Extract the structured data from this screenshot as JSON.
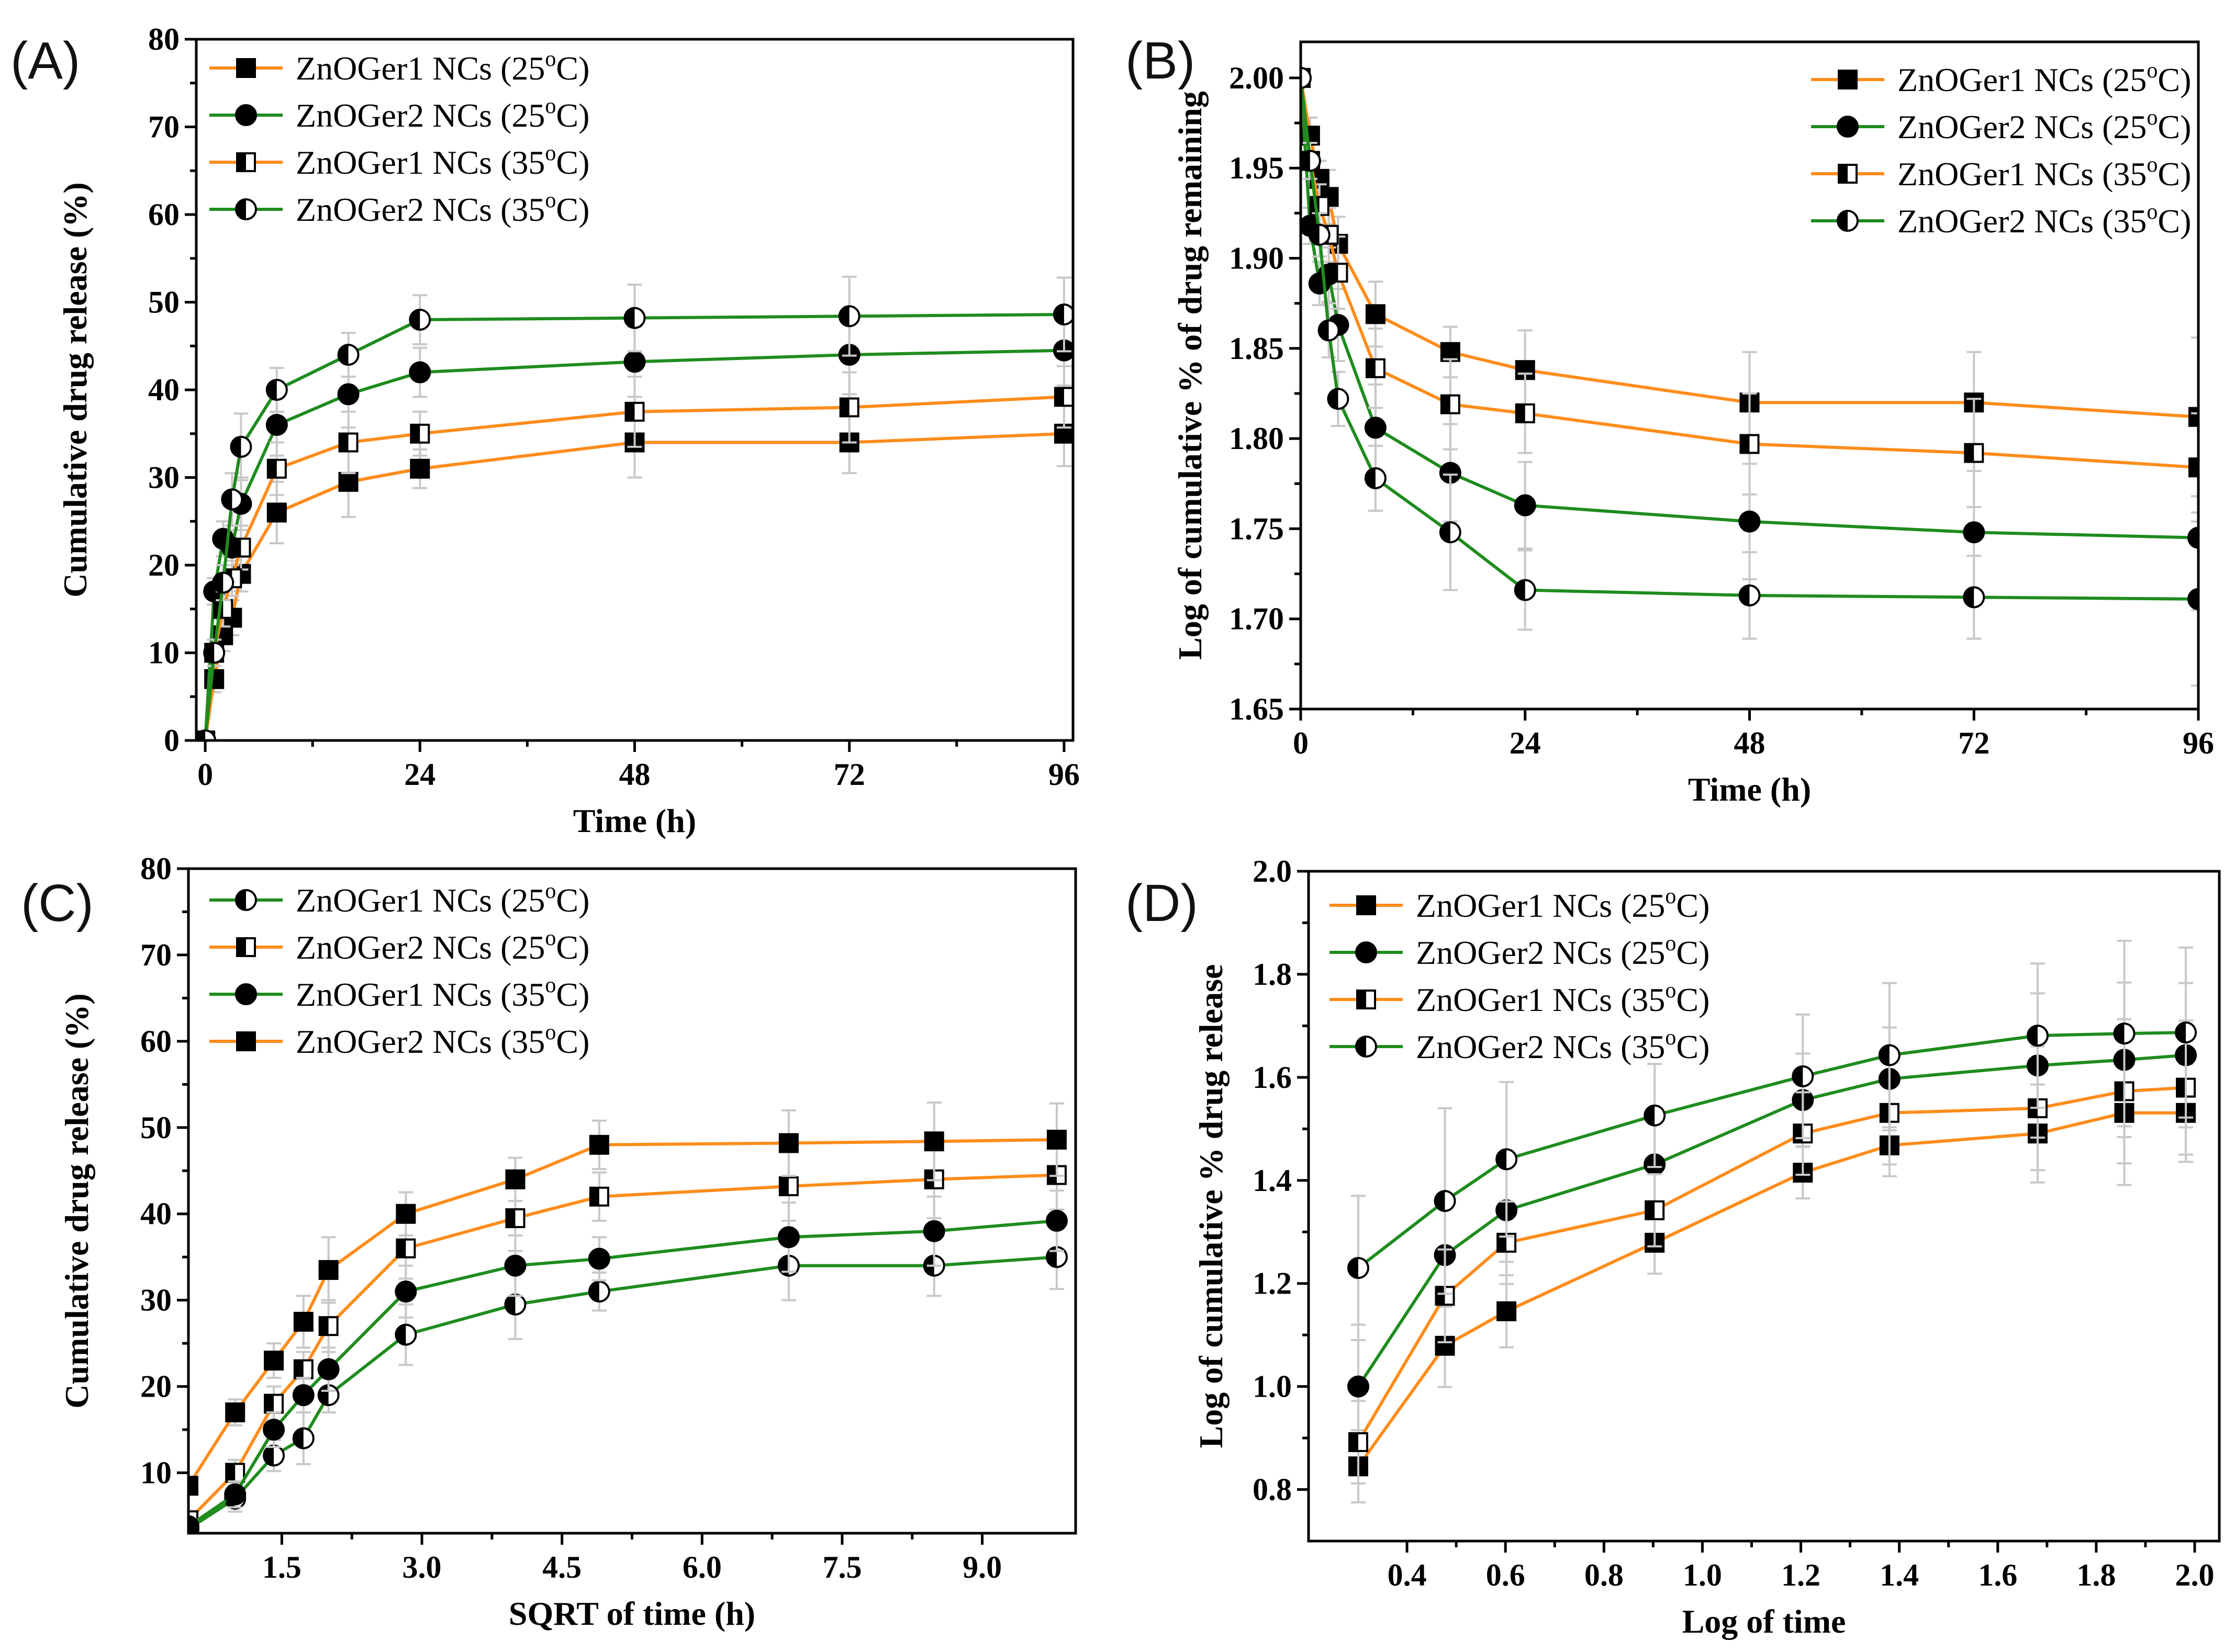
{
  "colors": {
    "orange": "#FF8C1A",
    "green": "#1E8C1E",
    "error_bar": "#C8C8C8",
    "axis": "#000000"
  },
  "chart_data": [
    {
      "panel": "(A)",
      "type": "line",
      "xlabel": "Time (h)",
      "ylabel": "Cumulative drug release (%)",
      "xlim": [
        -1,
        97
      ],
      "ylim": [
        0,
        80
      ],
      "xticks": [
        0,
        24,
        48,
        72,
        96
      ],
      "yticks": [
        0,
        10,
        20,
        30,
        40,
        50,
        60,
        70,
        80
      ],
      "xticklabels": [
        "0",
        "24",
        "48",
        "72",
        "96"
      ],
      "yticklabels": [
        "0",
        "10",
        "20",
        "30",
        "40",
        "50",
        "60",
        "70",
        "80"
      ],
      "legend_position": "top-left",
      "series": [
        {
          "name": "ZnOGer1 NCs (25",
          "deg": "o",
          "suffix": "C)",
          "color": "orange",
          "marker": "square-filled",
          "x": [
            0,
            1,
            2,
            3,
            4,
            8,
            16,
            24,
            48,
            72,
            96
          ],
          "y": [
            0,
            7,
            12,
            14,
            19,
            26,
            29.5,
            31,
            34,
            34,
            35
          ],
          "err": [
            0,
            1.5,
            1.8,
            2,
            2,
            3.5,
            4,
            2.2,
            4,
            3.5,
            3.7
          ]
        },
        {
          "name": "ZnOGer2 NCs (25",
          "deg": "o",
          "suffix": "C)",
          "color": "green",
          "marker": "circle-filled",
          "x": [
            0,
            1,
            2,
            3,
            4,
            8,
            16,
            24,
            48,
            72,
            96
          ],
          "y": [
            0,
            17,
            23,
            22,
            27,
            36,
            39.5,
            42,
            43.2,
            44,
            44.5
          ],
          "err": [
            0,
            1.5,
            2,
            2,
            3,
            3.5,
            3.8,
            2.8,
            4,
            4.5,
            4
          ]
        },
        {
          "name": "ZnOGer1 NCs (35",
          "deg": "o",
          "suffix": "C)",
          "color": "orange",
          "marker": "square-half",
          "x": [
            0,
            1,
            2,
            3,
            4,
            8,
            16,
            24,
            48,
            72,
            96
          ],
          "y": [
            0,
            10,
            15,
            18.5,
            22,
            31,
            34,
            35,
            37.5,
            38,
            39.2
          ],
          "err": [
            0,
            1.5,
            2,
            2,
            2.5,
            3,
            3.5,
            2.5,
            4,
            4,
            3.5
          ]
        },
        {
          "name": "ZnOGer2 NCs (35",
          "deg": "o",
          "suffix": "C)",
          "color": "green",
          "marker": "circle-half",
          "x": [
            0,
            1,
            2,
            3,
            4,
            8,
            16,
            24,
            48,
            72,
            96
          ],
          "y": [
            0,
            10,
            18,
            27.5,
            33.5,
            40,
            44,
            48,
            48.2,
            48.4,
            48.6
          ],
          "err": [
            0,
            1.5,
            2,
            3,
            3.8,
            2.5,
            2.5,
            2.8,
            3.8,
            4.5,
            4.2
          ]
        }
      ]
    },
    {
      "panel": "(B)",
      "type": "line",
      "xlabel": "Time (h)",
      "ylabel": "Log of cumulative % of drug remaining",
      "xlim": [
        0,
        96
      ],
      "ylim": [
        1.65,
        2.02
      ],
      "xticks": [
        0,
        24,
        48,
        72,
        96
      ],
      "yticks": [
        1.65,
        1.7,
        1.75,
        1.8,
        1.85,
        1.9,
        1.95,
        2.0
      ],
      "xticklabels": [
        "0",
        "24",
        "48",
        "72",
        "96"
      ],
      "yticklabels": [
        "1.65",
        "1.70",
        "1.75",
        "1.80",
        "1.85",
        "1.90",
        "1.95",
        "2.00"
      ],
      "legend_position": "top-right",
      "series": [
        {
          "name": "ZnOGer1 NCs (25",
          "deg": "o",
          "suffix": "C)",
          "color": "orange",
          "marker": "square-filled",
          "x": [
            0,
            1,
            2,
            3,
            4,
            8,
            16,
            24,
            48,
            72,
            96
          ],
          "y": [
            2.0,
            1.968,
            1.944,
            1.934,
            1.908,
            1.869,
            1.848,
            1.838,
            1.82,
            1.82,
            1.812
          ],
          "err": [
            0,
            0.01,
            0.01,
            0.015,
            0.015,
            0.018,
            0.014,
            0.022,
            0.028,
            0.028,
            0.044
          ]
        },
        {
          "name": "ZnOGer2 NCs (25",
          "deg": "o",
          "suffix": "C)",
          "color": "green",
          "marker": "circle-filled",
          "x": [
            0,
            1,
            2,
            3,
            4,
            8,
            16,
            24,
            48,
            72,
            96
          ],
          "y": [
            2.0,
            1.918,
            1.886,
            1.891,
            1.863,
            1.806,
            1.781,
            1.763,
            1.754,
            1.748,
            1.745
          ],
          "err": [
            0,
            0.01,
            0.012,
            0.015,
            0.02,
            0.024,
            0.027,
            0.024,
            0.032,
            0.034,
            0.04
          ]
        },
        {
          "name": "ZnOGer1 NCs (35",
          "deg": "o",
          "suffix": "C)",
          "color": "orange",
          "marker": "square-half",
          "x": [
            0,
            1,
            2,
            3,
            4,
            8,
            16,
            24,
            48,
            72,
            96
          ],
          "y": [
            2.0,
            1.954,
            1.929,
            1.913,
            1.892,
            1.839,
            1.819,
            1.814,
            1.797,
            1.792,
            1.784
          ],
          "err": [
            0,
            0.01,
            0.012,
            0.015,
            0.02,
            0.022,
            0.025,
            0.022,
            0.028,
            0.03,
            0.03
          ]
        },
        {
          "name": "ZnOGer2 NCs (35",
          "deg": "o",
          "suffix": "C)",
          "color": "green",
          "marker": "circle-half",
          "x": [
            0,
            1,
            2,
            3,
            4,
            8,
            16,
            24,
            48,
            72,
            96
          ],
          "y": [
            2.0,
            1.954,
            1.913,
            1.86,
            1.822,
            1.778,
            1.748,
            1.716,
            1.713,
            1.712,
            1.711
          ],
          "err": [
            0,
            0.01,
            0.012,
            0.015,
            0.015,
            0.018,
            0.032,
            0.022,
            0.024,
            0.023,
            0.048
          ]
        }
      ]
    },
    {
      "panel": "(C)",
      "type": "line",
      "xlabel": "SQRT of time (h)",
      "ylabel": "Cumulative drug release (%)",
      "xlim": [
        0.5,
        10.0
      ],
      "ylim": [
        3,
        80
      ],
      "xticks": [
        1.5,
        3.0,
        4.5,
        6.0,
        7.5,
        9.0
      ],
      "yticks": [
        10,
        20,
        30,
        40,
        50,
        60,
        70,
        80
      ],
      "xticklabels": [
        "1.5",
        "3.0",
        "4.5",
        "6.0",
        "7.5",
        "9.0"
      ],
      "yticklabels": [
        "10",
        "20",
        "30",
        "40",
        "50",
        "60",
        "70",
        "80"
      ],
      "legend_position": "top-left",
      "series": [
        {
          "name": "ZnOGer1 NCs (25",
          "deg": "o",
          "suffix": "C)",
          "color": "green",
          "marker": "circle-half",
          "x": [
            0.5,
            1.0,
            1.414,
            1.732,
            2.0,
            2.828,
            4.0,
            4.899,
            6.928,
            8.485,
            9.798
          ],
          "y": [
            3.5,
            7,
            12,
            14,
            19,
            26,
            29.5,
            31,
            34,
            34,
            35
          ],
          "err": [
            0,
            1.5,
            1.8,
            3,
            2,
            3.5,
            4,
            2.2,
            4,
            3.5,
            3.7
          ]
        },
        {
          "name": "ZnOGer2 NCs (25",
          "deg": "o",
          "suffix": "C)",
          "color": "orange",
          "marker": "square-half",
          "x": [
            0.5,
            1.0,
            1.414,
            1.732,
            2.0,
            2.828,
            4.0,
            4.899,
            6.928,
            8.485,
            9.798
          ],
          "y": [
            4.5,
            10,
            18,
            22,
            27,
            36,
            39.5,
            42,
            43.2,
            44,
            44.5
          ],
          "err": [
            0,
            1.5,
            2,
            2,
            3,
            3.5,
            3.8,
            2.8,
            4,
            4.5,
            4
          ]
        },
        {
          "name": "ZnOGer1 NCs (35",
          "deg": "o",
          "suffix": "C)",
          "color": "green",
          "marker": "circle-filled",
          "x": [
            0.5,
            1.0,
            1.414,
            1.732,
            2.0,
            2.828,
            4.0,
            4.899,
            6.928,
            8.485,
            9.798
          ],
          "y": [
            3.8,
            7.5,
            15,
            19,
            22,
            31,
            34,
            34.8,
            37.3,
            38,
            39.2
          ],
          "err": [
            0,
            1.5,
            2,
            2,
            2.5,
            3,
            3.5,
            2.5,
            4,
            4,
            3.5
          ]
        },
        {
          "name": "ZnOGer2 NCs (35",
          "deg": "o",
          "suffix": "C)",
          "color": "orange",
          "marker": "square-filled",
          "x": [
            0.5,
            1.0,
            1.414,
            1.732,
            2.0,
            2.828,
            4.0,
            4.899,
            6.928,
            8.485,
            9.798
          ],
          "y": [
            8.5,
            17,
            23,
            27.5,
            33.5,
            40,
            44,
            48,
            48.2,
            48.4,
            48.6
          ],
          "err": [
            0,
            1.5,
            2,
            3,
            3.8,
            2.5,
            2.5,
            2.8,
            3.8,
            4.5,
            4.2
          ]
        }
      ]
    },
    {
      "panel": "(D)",
      "type": "line",
      "xlabel": "Log of time",
      "ylabel": "Log of cumulative % drug release",
      "xlim": [
        0.2,
        2.05
      ],
      "ylim": [
        0.7,
        2.0
      ],
      "xticks": [
        0.4,
        0.6,
        0.8,
        1.0,
        1.2,
        1.4,
        1.6,
        1.8,
        2.0
      ],
      "yticks": [
        0.8,
        1.0,
        1.2,
        1.4,
        1.6,
        1.8,
        2.0
      ],
      "xticklabels": [
        "0.4",
        "0.6",
        "0.8",
        "1.0",
        "1.2",
        "1.4",
        "1.6",
        "1.8",
        "2.0"
      ],
      "yticklabels": [
        "0.8",
        "1.0",
        "1.2",
        "1.4",
        "1.6",
        "1.8",
        "2.0"
      ],
      "legend_position": "top-left",
      "series": [
        {
          "name": "ZnOGer1 NCs (25",
          "deg": "o",
          "suffix": "C)",
          "color": "orange",
          "marker": "square-filled",
          "x": [
            0.301,
            0.477,
            0.602,
            0.903,
            1.204,
            1.38,
            1.681,
            1.857,
            1.982
          ],
          "y": [
            0.845,
            1.079,
            1.146,
            1.279,
            1.415,
            1.468,
            1.491,
            1.531,
            1.531
          ],
          "err": [
            0.07,
            0.08,
            0.07,
            0.06,
            0.05,
            0.06,
            0.095,
            0.14,
            0.095
          ]
        },
        {
          "name": "ZnOGer2 NCs (25",
          "deg": "o",
          "suffix": "C)",
          "color": "green",
          "marker": "circle-filled",
          "x": [
            0.301,
            0.477,
            0.602,
            0.903,
            1.204,
            1.38,
            1.681,
            1.857,
            1.982
          ],
          "y": [
            1.0,
            1.255,
            1.342,
            1.431,
            1.556,
            1.597,
            1.623,
            1.634,
            1.643
          ],
          "err": [
            0.12,
            0.1,
            0.1,
            0.08,
            0.09,
            0.1,
            0.14,
            0.15,
            0.14
          ]
        },
        {
          "name": "ZnOGer1 NCs (35",
          "deg": "o",
          "suffix": "C)",
          "color": "orange",
          "marker": "square-half",
          "x": [
            0.301,
            0.477,
            0.602,
            0.903,
            1.204,
            1.38,
            1.681,
            1.857,
            1.982
          ],
          "y": [
            0.892,
            1.176,
            1.279,
            1.342,
            1.491,
            1.531,
            1.54,
            1.573,
            1.58
          ],
          "err": [
            0.08,
            0.09,
            0.08,
            0.07,
            0.08,
            0.1,
            0.12,
            0.14,
            0.13
          ]
        },
        {
          "name": "ZnOGer2 NCs (35",
          "deg": "o",
          "suffix": "C)",
          "color": "green",
          "marker": "circle-half",
          "x": [
            0.301,
            0.477,
            0.602,
            0.903,
            1.204,
            1.38,
            1.681,
            1.857,
            1.982
          ],
          "y": [
            1.23,
            1.36,
            1.441,
            1.526,
            1.602,
            1.643,
            1.681,
            1.685,
            1.687
          ],
          "err": [
            0.14,
            0.18,
            0.15,
            0.1,
            0.12,
            0.14,
            0.14,
            0.18,
            0.165
          ]
        }
      ]
    }
  ]
}
